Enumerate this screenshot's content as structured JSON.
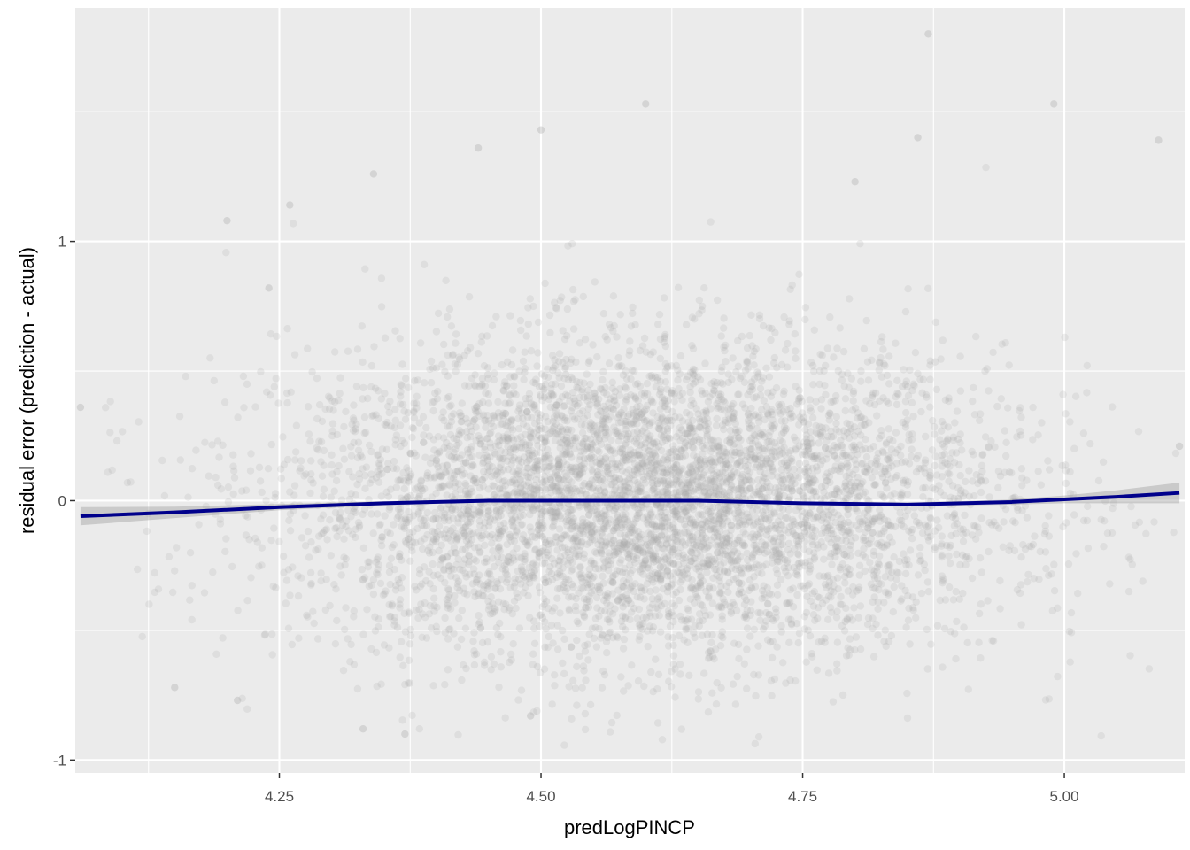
{
  "chart_data": {
    "type": "scatter",
    "xlabel": "predLogPINCP",
    "ylabel": "residual error (prediction - actual)",
    "xlim": [
      4.055,
      5.115
    ],
    "ylim": [
      -1.05,
      1.9
    ],
    "x_ticks": [
      4.25,
      4.5,
      4.75,
      5.0
    ],
    "x_tick_labels": [
      "4.25",
      "4.50",
      "4.75",
      "5.00"
    ],
    "y_ticks": [
      -1,
      0,
      1
    ],
    "y_tick_labels": [
      "-1",
      "0",
      "1"
    ],
    "grid": true,
    "legend": "none",
    "colors": {
      "panel": "#EBEBEB",
      "grid": "#FFFFFF",
      "points": "#A9A9A9",
      "smooth_line": "#00008B",
      "ribbon": "#999999"
    },
    "points_summary": {
      "count_approx": 6000,
      "x_center": 4.6,
      "x_sd": 0.17,
      "y_center": 0.0,
      "y_sd": 0.3,
      "alpha": 0.2
    },
    "notable_points": [
      {
        "x": 4.06,
        "y": 0.36
      },
      {
        "x": 4.2,
        "y": 1.08
      },
      {
        "x": 4.24,
        "y": 0.82
      },
      {
        "x": 4.26,
        "y": 1.14
      },
      {
        "x": 4.34,
        "y": 1.26
      },
      {
        "x": 4.44,
        "y": 1.36
      },
      {
        "x": 4.5,
        "y": 1.43
      },
      {
        "x": 4.6,
        "y": 1.53
      },
      {
        "x": 4.8,
        "y": 1.23
      },
      {
        "x": 4.86,
        "y": 1.4
      },
      {
        "x": 4.87,
        "y": 1.8
      },
      {
        "x": 4.99,
        "y": 1.53
      },
      {
        "x": 5.09,
        "y": 1.39
      },
      {
        "x": 4.15,
        "y": -0.72
      },
      {
        "x": 4.21,
        "y": -0.77
      },
      {
        "x": 4.33,
        "y": -0.88
      },
      {
        "x": 4.37,
        "y": -0.9
      },
      {
        "x": 4.49,
        "y": -0.83
      },
      {
        "x": 5.11,
        "y": 0.21
      }
    ],
    "smooth": {
      "method": "loess",
      "x": [
        4.06,
        4.15,
        4.25,
        4.35,
        4.45,
        4.55,
        4.65,
        4.75,
        4.85,
        4.95,
        5.0,
        5.05,
        5.11
      ],
      "y": [
        -0.06,
        -0.045,
        -0.025,
        -0.01,
        0.0,
        0.0,
        0.0,
        -0.01,
        -0.015,
        -0.005,
        0.005,
        0.015,
        0.03
      ],
      "se_halfwidth": [
        0.035,
        0.022,
        0.012,
        0.008,
        0.006,
        0.005,
        0.005,
        0.006,
        0.007,
        0.01,
        0.015,
        0.025,
        0.04
      ]
    }
  }
}
